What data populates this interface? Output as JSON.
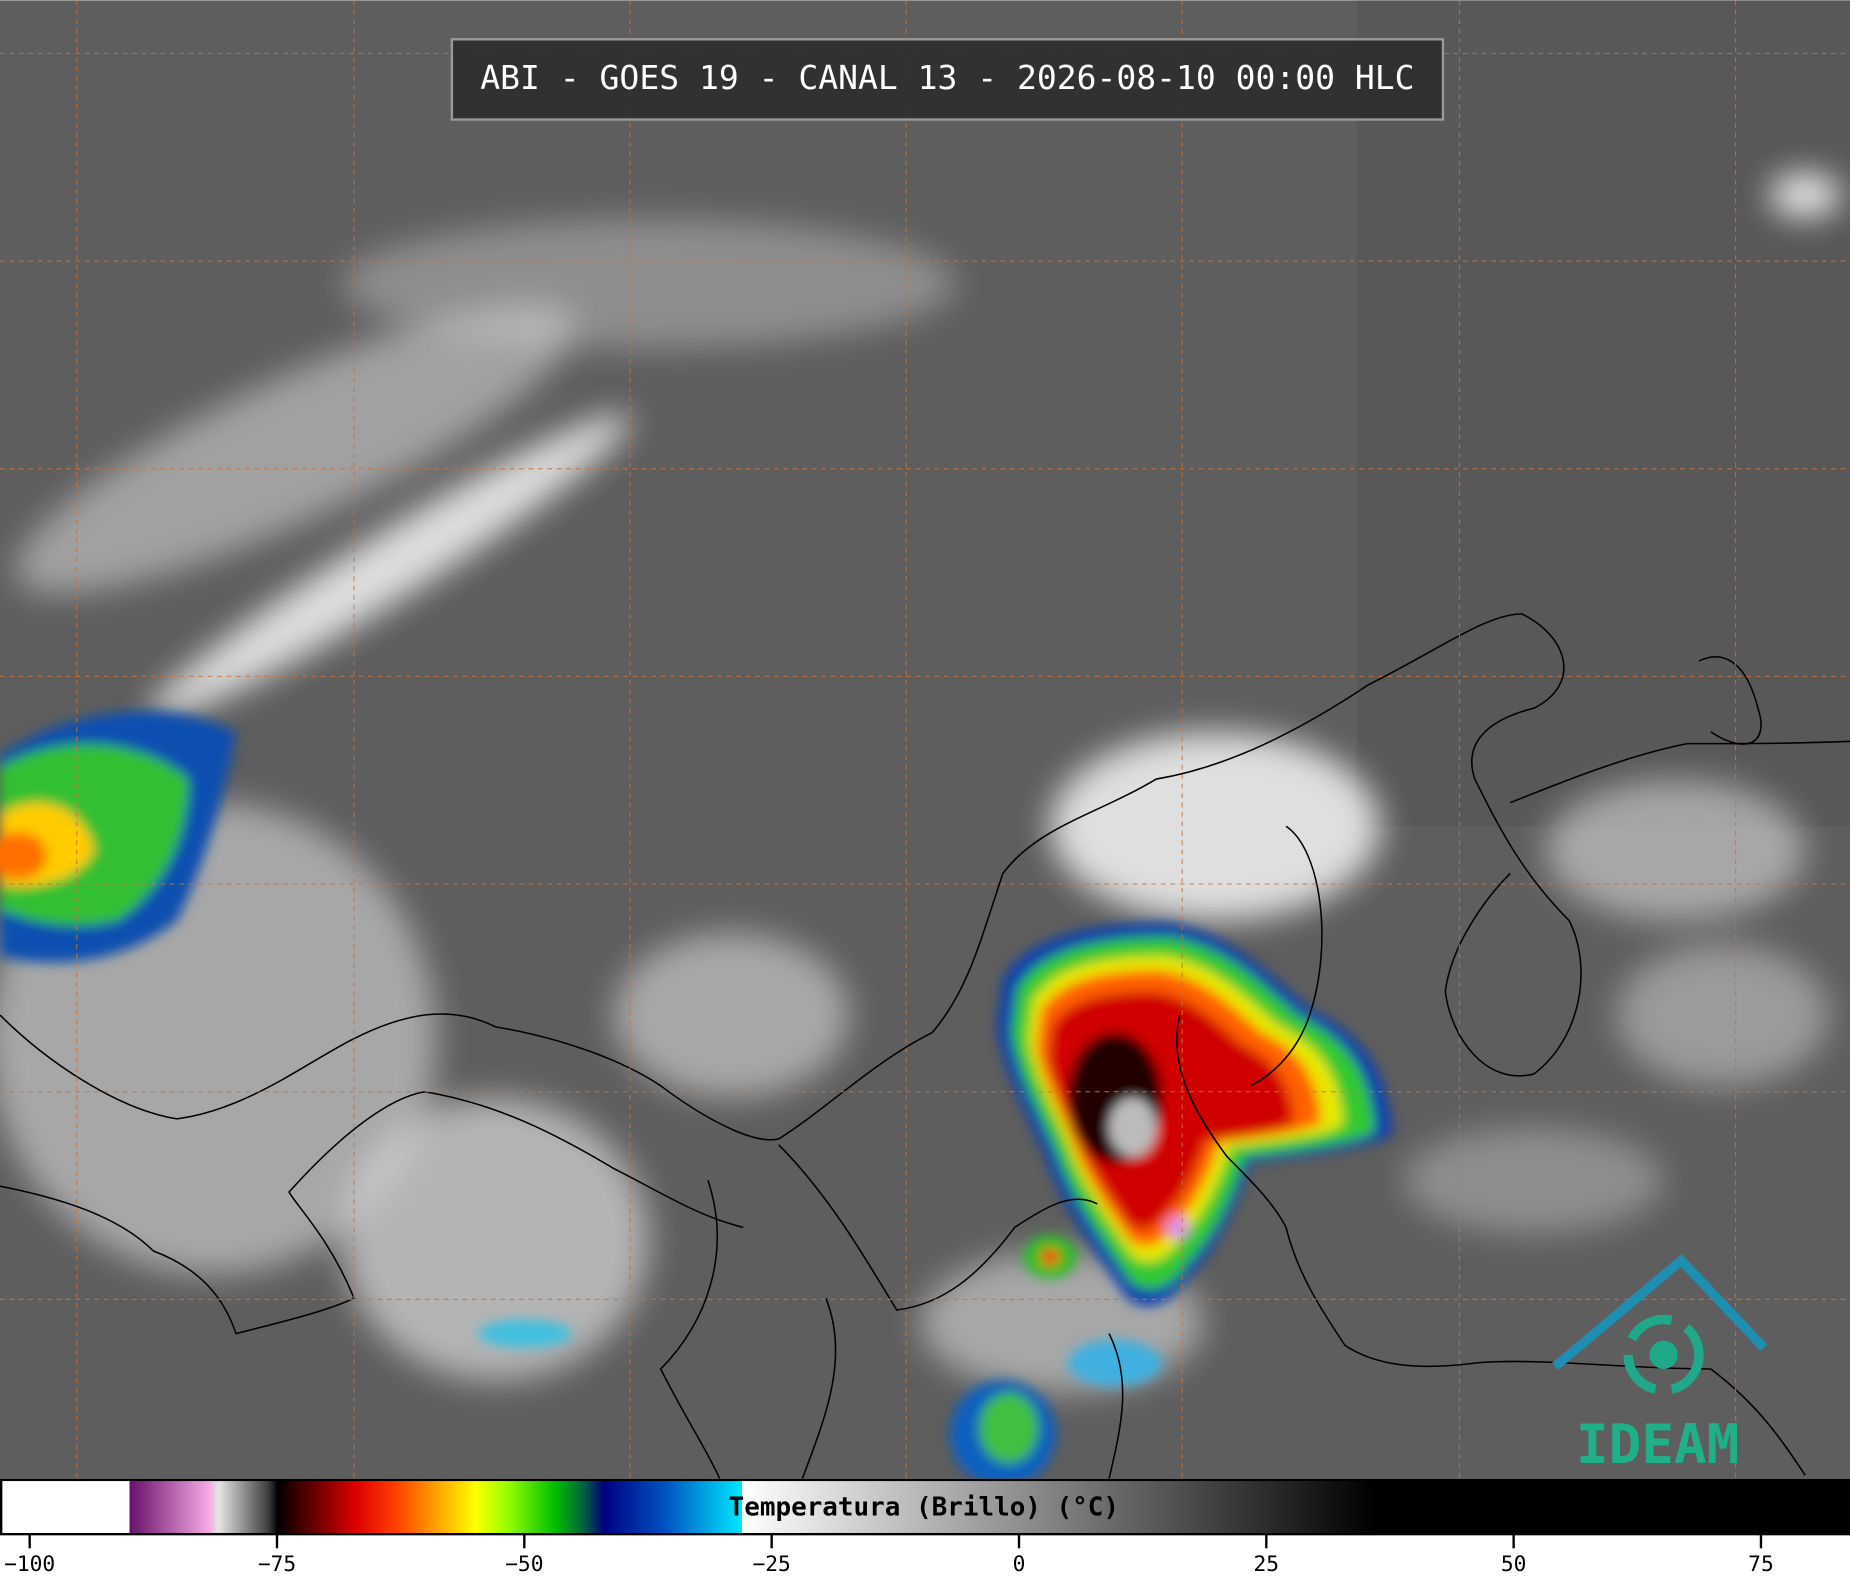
{
  "title": "ABI - GOES 19 - CANAL 13 - 2026-08-10 00:00 HLC",
  "logo": "IDEAM",
  "colorbar": {
    "label": "Temperatura (Brillo) (°C)",
    "xlim": [
      -103,
      84
    ],
    "ticks": [
      {
        "value": -100,
        "label": "−100"
      },
      {
        "value": -75,
        "label": "−75"
      },
      {
        "value": -50,
        "label": "−50"
      },
      {
        "value": -25,
        "label": "−25"
      },
      0,
      25,
      50,
      75
    ],
    "colormap": [
      [
        -103,
        "#ffffff"
      ],
      [
        -90,
        "#ffffff"
      ],
      [
        -90,
        "#6a106a"
      ],
      [
        -82,
        "#f4a8e4"
      ],
      [
        -81,
        "#e4e4e4"
      ],
      [
        -76,
        "#404040"
      ],
      [
        -75,
        "#000000"
      ],
      [
        -73,
        "#3a0000"
      ],
      [
        -67,
        "#e00000"
      ],
      [
        -63,
        "#ff4000"
      ],
      [
        -59,
        "#ffa000"
      ],
      [
        -55,
        "#ffff00"
      ],
      [
        -52,
        "#a0ff00"
      ],
      [
        -47,
        "#00c000"
      ],
      [
        -44,
        "#006040"
      ],
      [
        -42,
        "#000080"
      ],
      [
        -36,
        "#0050c0"
      ],
      [
        -28,
        "#00e8ff"
      ],
      [
        -28,
        "#ffffff"
      ],
      [
        36,
        "#000000"
      ],
      [
        84,
        "#000000"
      ]
    ]
  }
}
